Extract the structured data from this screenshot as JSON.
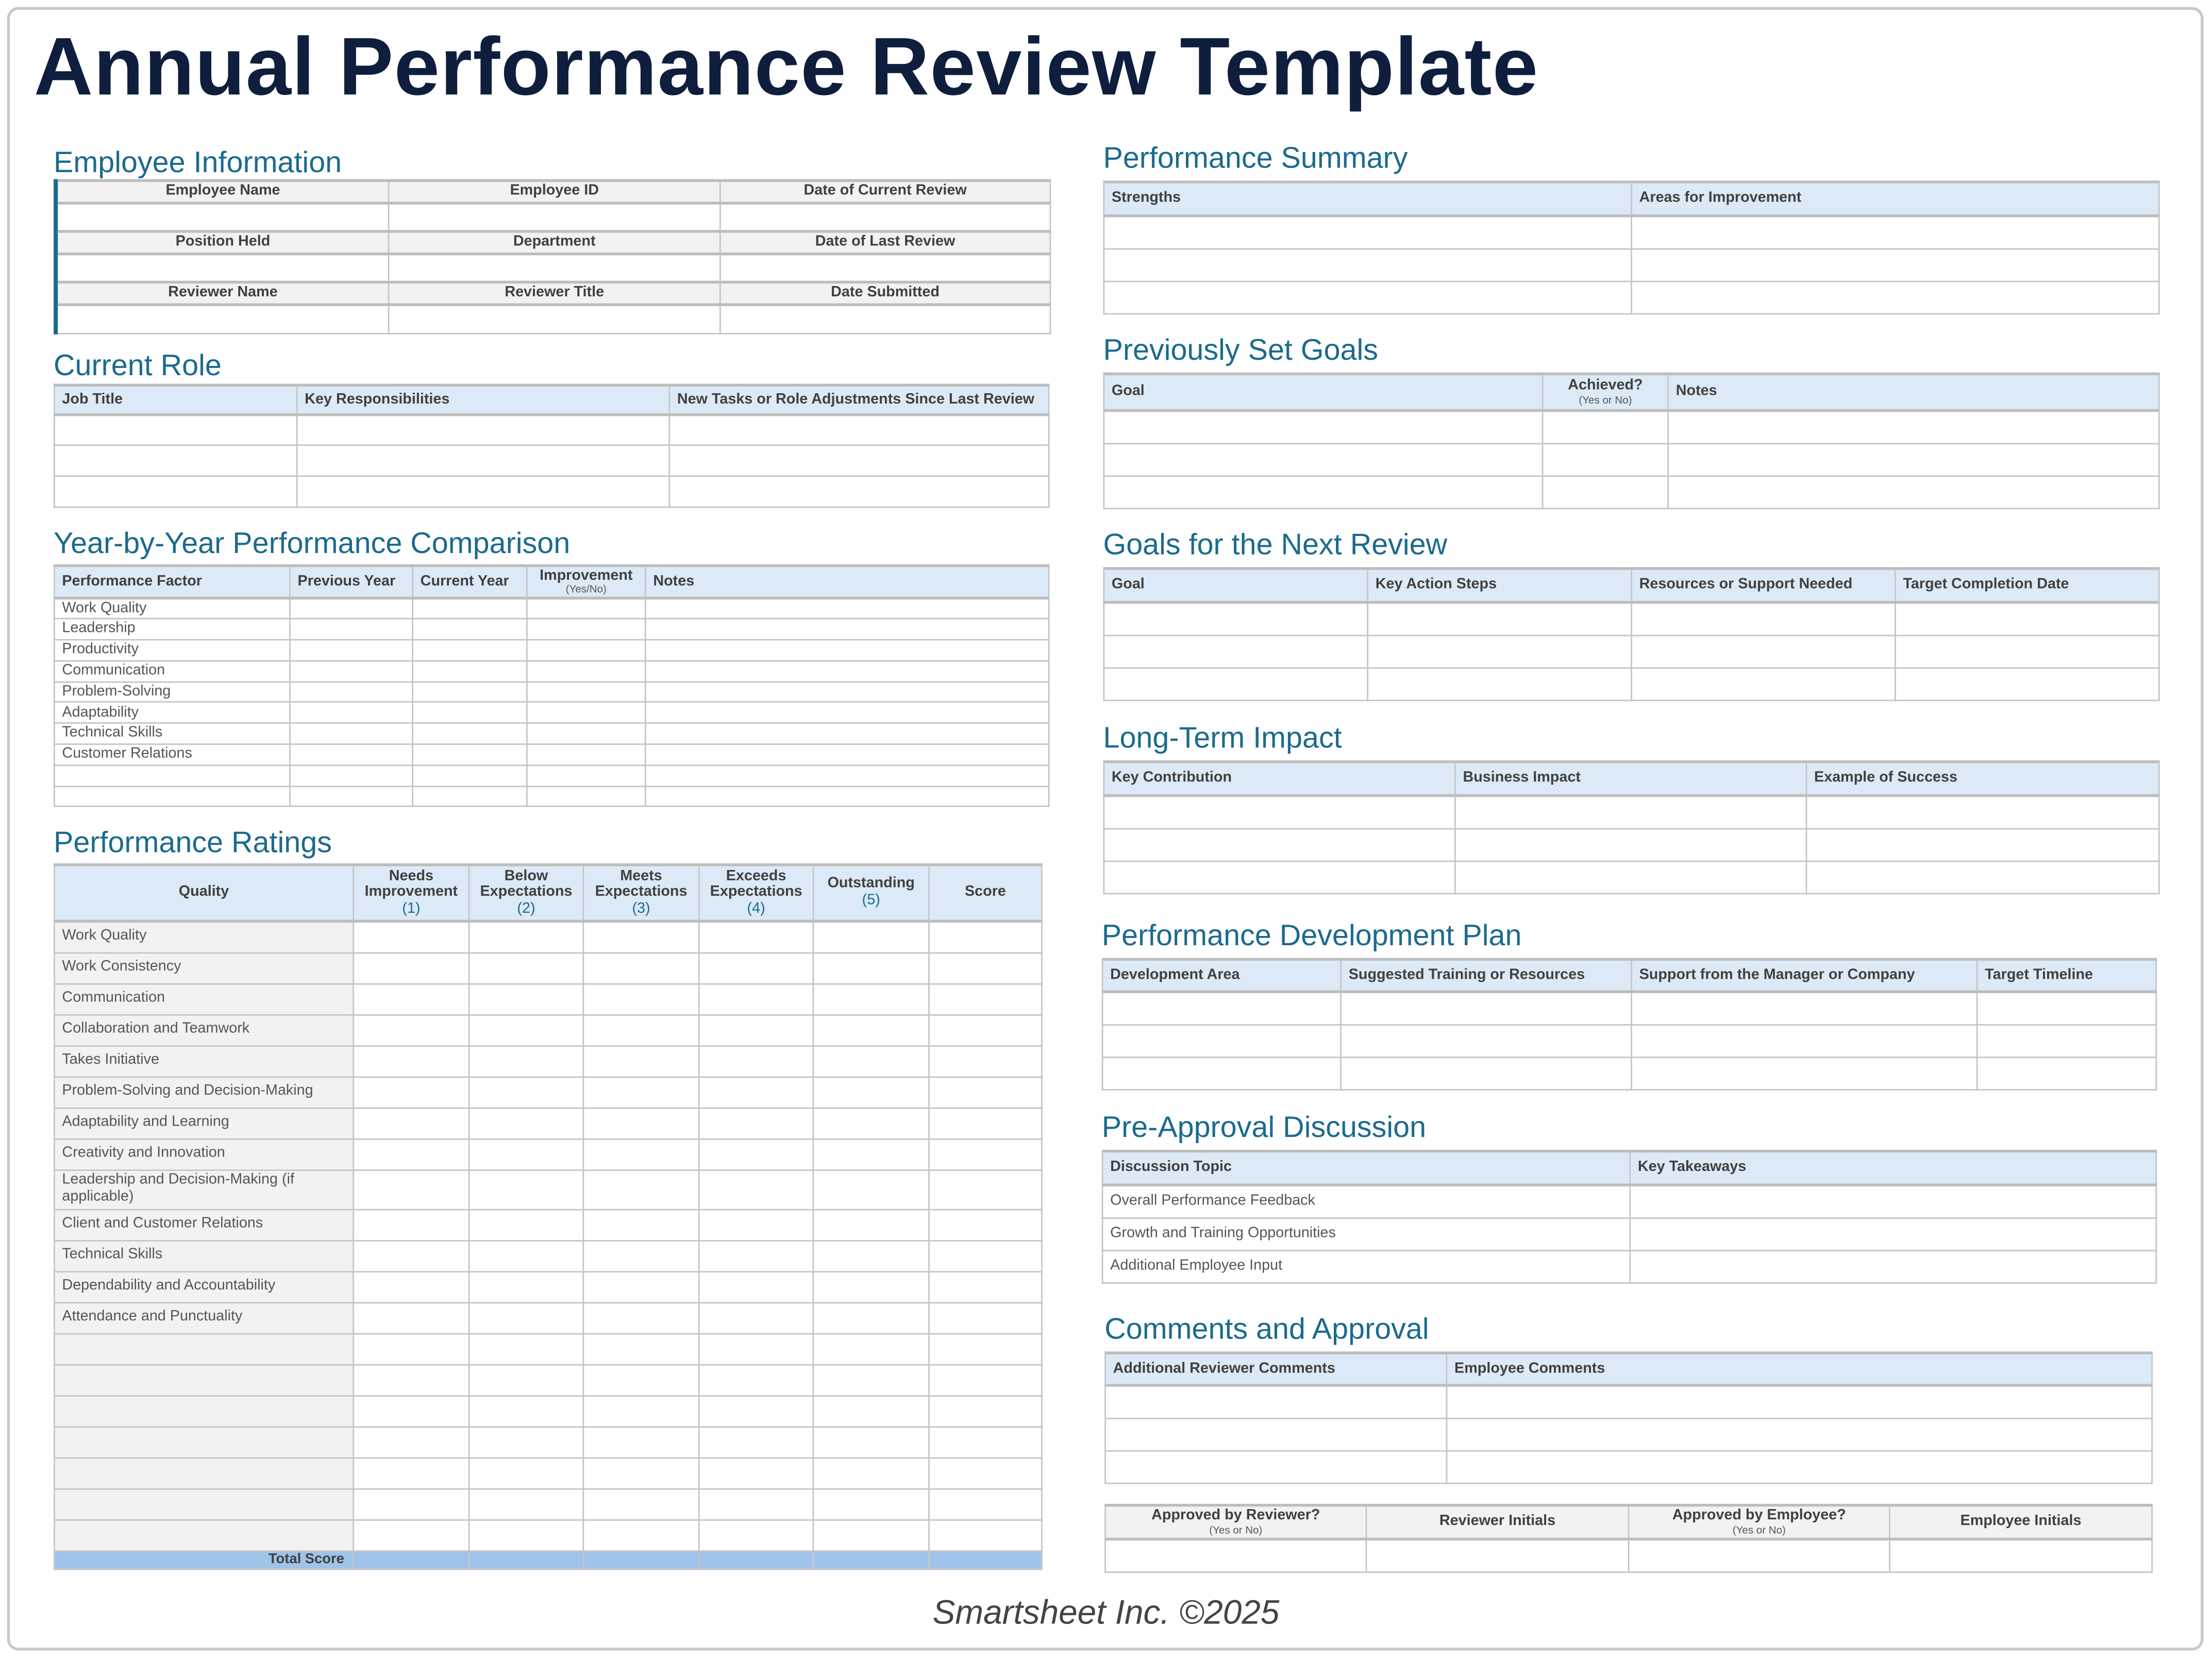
{
  "title": "Annual Performance Review Template",
  "footer": "Smartsheet Inc. ©2025",
  "colors": {
    "title": "#0f1e3d",
    "heading": "#1b6a8e",
    "header_fill": "#dce9f7",
    "label_fill": "#f2f2f2",
    "total_fill": "#9fc3e9"
  },
  "sections": {
    "employee_info": {
      "heading": "Employee Information",
      "header_rows": [
        [
          "Employee Name",
          "Employee ID",
          "Date of Current Review"
        ],
        [
          "Position Held",
          "Department",
          "Date of Last Review"
        ],
        [
          "Reviewer Name",
          "Reviewer Title",
          "Date Submitted"
        ]
      ]
    },
    "current_role": {
      "heading": "Current Role",
      "columns": [
        "Job Title",
        "Key Responsibilities",
        "New Tasks or Role Adjustments Since Last Review"
      ]
    },
    "year_comparison": {
      "heading": "Year-by-Year Performance Comparison",
      "columns": [
        "Performance Factor",
        "Previous Year",
        "Current Year",
        "Improvement",
        "Notes"
      ],
      "column_notes": [
        "",
        "",
        "",
        "(Yes/No)",
        ""
      ],
      "rows": [
        "Work Quality",
        "Leadership",
        "Productivity",
        "Communication",
        "Problem-Solving",
        "Adaptability",
        "Technical Skills",
        "Customer Relations",
        "",
        ""
      ]
    },
    "ratings": {
      "heading": "Performance Ratings",
      "columns": [
        "Quality",
        "Needs Improvement",
        "Below Expectations",
        "Meets Expectations",
        "Exceeds Expectations",
        "Outstanding",
        "Score"
      ],
      "column_notes": [
        "",
        "(1)",
        "(2)",
        "(3)",
        "(4)",
        "(5)",
        ""
      ],
      "rows": [
        "Work Quality",
        "Work Consistency",
        "Communication",
        "Collaboration and Teamwork",
        "Takes Initiative",
        "Problem-Solving and Decision-Making",
        "Adaptability and Learning",
        "Creativity and Innovation",
        "Leadership and Decision-Making (if applicable)",
        "Client and Customer Relations",
        "Technical Skills",
        "Dependability and Accountability",
        "Attendance and Punctuality",
        "",
        "",
        "",
        "",
        "",
        "",
        ""
      ],
      "total_label": "Total Score"
    },
    "summary": {
      "heading": "Performance Summary",
      "columns": [
        "Strengths",
        "Areas for Improvement"
      ]
    },
    "previous_goals": {
      "heading": "Previously Set Goals",
      "columns": [
        "Goal",
        "Achieved?",
        "Notes"
      ],
      "column_notes": [
        "",
        "(Yes or No)",
        ""
      ]
    },
    "next_goals": {
      "heading": "Goals for the Next Review",
      "columns": [
        "Goal",
        "Key Action Steps",
        "Resources or Support Needed",
        "Target Completion Date"
      ]
    },
    "long_term": {
      "heading": "Long-Term Impact",
      "columns": [
        "Key Contribution",
        "Business Impact",
        "Example of Success"
      ]
    },
    "development": {
      "heading": "Performance Development Plan",
      "columns": [
        "Development Area",
        "Suggested Training or Resources",
        "Support from the Manager or Company",
        "Target Timeline"
      ]
    },
    "pre_approval": {
      "heading": "Pre-Approval Discussion",
      "columns": [
        "Discussion Topic",
        "Key Takeaways"
      ],
      "rows": [
        "Overall Performance Feedback",
        "Growth and Training Opportunities",
        "Additional Employee Input"
      ]
    },
    "comments": {
      "heading": "Comments and Approval",
      "columns": [
        "Additional Reviewer Comments",
        "Employee Comments"
      ]
    },
    "approval": {
      "columns": [
        "Approved by Reviewer?",
        "Reviewer Initials",
        "Approved by Employee?",
        "Employee Initials"
      ],
      "column_notes": [
        "(Yes or No)",
        "",
        "(Yes or No)",
        ""
      ]
    }
  }
}
